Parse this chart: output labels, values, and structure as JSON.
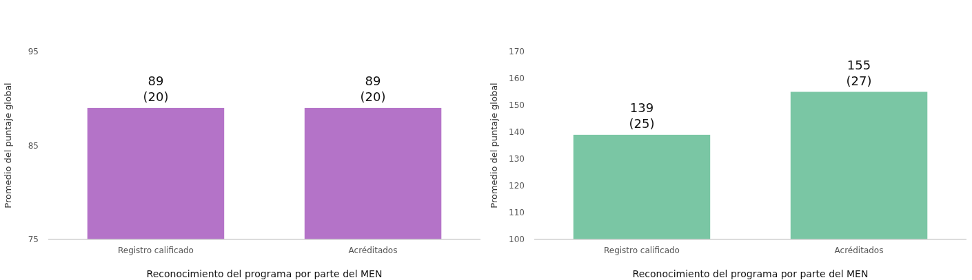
{
  "chart_data": [
    {
      "type": "bar",
      "categories": [
        "Registro calificado",
        "Acréditados"
      ],
      "values": [
        89,
        89
      ],
      "value_labels": [
        "89\n(20)",
        "89\n(20)"
      ],
      "color": "#b473c8",
      "ylim": [
        75,
        95
      ],
      "yticks": [
        75,
        85,
        95
      ],
      "xlabel": "Reconocimiento del programa por parte del MEN",
      "ylabel": "Promedio del puntaje global"
    },
    {
      "type": "bar",
      "categories": [
        "Registro calificado",
        "Acréditados"
      ],
      "values": [
        139,
        155
      ],
      "value_labels": [
        "139\n(25)",
        "155\n(27)"
      ],
      "color": "#7ac6a4",
      "ylim": [
        100,
        170
      ],
      "yticks": [
        100,
        110,
        120,
        130,
        140,
        150,
        160,
        170
      ],
      "xlabel": "Reconocimiento del programa por parte del MEN",
      "ylabel": "Promedio del puntaje global"
    }
  ]
}
